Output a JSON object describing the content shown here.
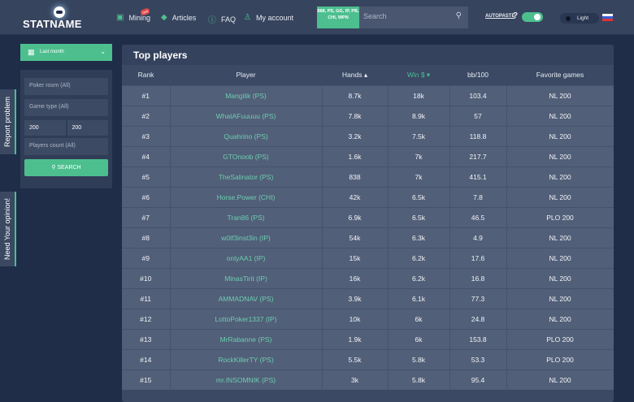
{
  "header": {
    "logo": "STATNAME",
    "nav": [
      {
        "label": "Mining",
        "icon": "mining-icon",
        "badge": "new"
      },
      {
        "label": "Articles",
        "icon": "diamond-icon"
      },
      {
        "label": "FAQ",
        "icon": "info-icon"
      },
      {
        "label": "My account",
        "icon": "user-icon"
      }
    ],
    "rooms": "888, PS, GG, IP, PB, CHI, WPN",
    "search_placeholder": "Search",
    "autopaste": "AUTOPASTE",
    "autopaste_help": "?",
    "autopaste_on": true,
    "theme": "Light",
    "language": "RU"
  },
  "sidebar": {
    "period": "Last month",
    "poker_room": "Poker room (All)",
    "game_type": "Game type (All)",
    "min": "200",
    "max": "200",
    "players_count": "Players count (All)",
    "search": "SEARCH",
    "report": "Report problem",
    "opinion": "Need Your opinion!"
  },
  "table": {
    "title": "Top players",
    "columns": [
      "Rank",
      "Player",
      "Hands ▴",
      "Win $ ▾",
      "bb/100",
      "Favorite games"
    ],
    "rows": [
      [
        "#1",
        "Mangilik (PS)",
        "8.7k",
        "18k",
        "103.4",
        "NL 200"
      ],
      [
        "#2",
        "WhatAFuuuuu (PS)",
        "7.8k",
        "8.9k",
        "57",
        "NL 200"
      ],
      [
        "#3",
        "Quahrino (PS)",
        "3.2k",
        "7.5k",
        "118.8",
        "NL 200"
      ],
      [
        "#4",
        "GTOnoob (PS)",
        "1.6k",
        "7k",
        "217.7",
        "NL 200"
      ],
      [
        "#5",
        "TheSalinator (PS)",
        "838",
        "7k",
        "415.1",
        "NL 200"
      ],
      [
        "#6",
        "Horse.Power (CHI)",
        "42k",
        "6.5k",
        "7.8",
        "NL 200"
      ],
      [
        "#7",
        "Tran86 (PS)",
        "6.9k",
        "6.5k",
        "46.5",
        "PLO 200"
      ],
      [
        "#8",
        "w0lf3inst3in (IP)",
        "54k",
        "6.3k",
        "4.9",
        "NL 200"
      ],
      [
        "#9",
        "onlyAA1 (IP)",
        "15k",
        "6.2k",
        "17.6",
        "NL 200"
      ],
      [
        "#10",
        "MinasTirit (IP)",
        "16k",
        "6.2k",
        "16.8",
        "NL 200"
      ],
      [
        "#11",
        "AMMADNAV (PS)",
        "3.9k",
        "6.1k",
        "77.3",
        "NL 200"
      ],
      [
        "#12",
        "LottoPoker1337 (IP)",
        "10k",
        "6k",
        "24.8",
        "NL 200"
      ],
      [
        "#13",
        "MrRabanne (PS)",
        "1.9k",
        "6k",
        "153.8",
        "PLO 200"
      ],
      [
        "#14",
        "RockKillerTY (PS)",
        "5.5k",
        "5.8k",
        "53.3",
        "PLO 200"
      ],
      [
        "#15",
        "mr.INSOMNIK (PS)",
        "3k",
        "5.8k",
        "95.4",
        "NL 200"
      ]
    ]
  }
}
